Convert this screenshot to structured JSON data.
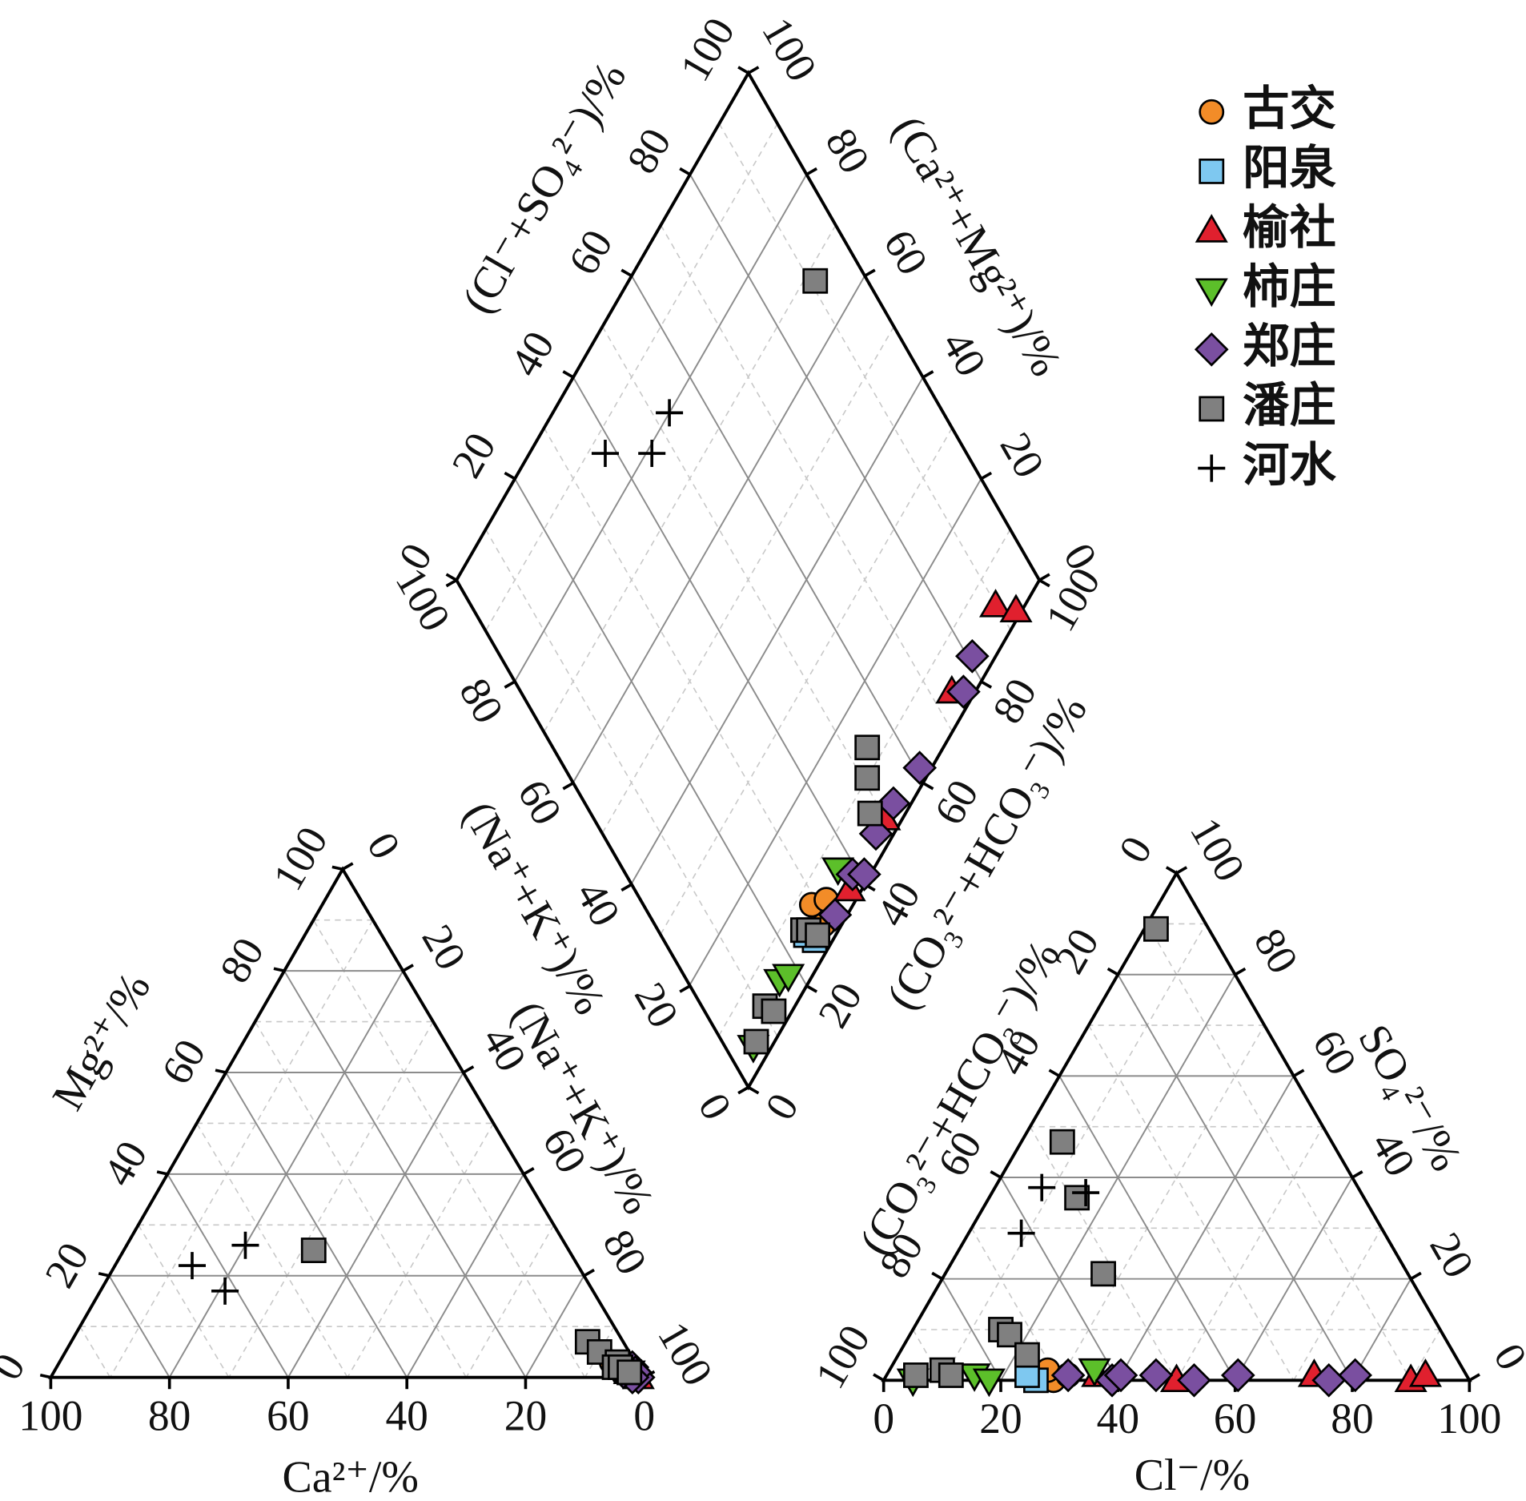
{
  "chart_data": {
    "type": "piper",
    "grid": true,
    "minor_grid": [
      10,
      30,
      50,
      70,
      90
    ],
    "legend": "top-right",
    "axes": {
      "ca": {
        "label": "Ca²⁺/%",
        "ticks": [
          0,
          20,
          40,
          60,
          80,
          100
        ]
      },
      "mg": {
        "label": "Mg²⁺/%",
        "ticks": [
          0,
          20,
          40,
          60,
          80,
          100
        ]
      },
      "nak": {
        "label": "(Na⁺+K⁺)/%",
        "ticks": [
          0,
          20,
          40,
          60,
          80,
          100
        ]
      },
      "cl": {
        "label": "Cl⁻/%",
        "ticks": [
          0,
          20,
          40,
          60,
          80,
          100
        ]
      },
      "so4": {
        "label": "SO₄²⁻/%",
        "ticks": [
          0,
          20,
          40,
          60,
          80,
          100
        ]
      },
      "hco3": {
        "label": "(CO₃²⁻+HCO₃⁻)/%",
        "ticks": [
          0,
          20,
          40,
          60,
          80,
          100
        ]
      },
      "d_clso4": {
        "label": "(Cl⁻+SO₄²⁻)/%",
        "ticks": [
          0,
          20,
          40,
          60,
          80,
          100
        ]
      },
      "d_camg": {
        "label": "(Ca²⁺+Mg²⁺)/%",
        "ticks": [
          0,
          20,
          40,
          60,
          80,
          100
        ]
      },
      "d_nak": {
        "label": "(Na⁺+K⁺)/%",
        "ticks": [
          0,
          20,
          40,
          60,
          80,
          100
        ]
      },
      "d_hco3": {
        "label": "(CO₃²⁻+HCO₃⁻)/%",
        "ticks": [
          0,
          20,
          40,
          60,
          80,
          100
        ]
      }
    },
    "series": [
      {
        "name": "古交",
        "color": "#f28c28",
        "marker": "circle",
        "ca": [
          3,
          2,
          4,
          3
        ],
        "mg": [
          2,
          1,
          3,
          2
        ],
        "cl": [
          25,
          29,
          27,
          31
        ],
        "so4": [
          1,
          0,
          2,
          1
        ]
      },
      {
        "name": "阳泉",
        "color": "#7ec8f0",
        "marker": "square",
        "ca": [
          2,
          3
        ],
        "mg": [
          1,
          2
        ],
        "cl": [
          26,
          24
        ],
        "so4": [
          0,
          1
        ]
      },
      {
        "name": "榆社",
        "color": "#e0202e",
        "marker": "triangle",
        "ca": [
          1,
          2,
          2,
          3,
          1
        ],
        "mg": [
          1,
          1,
          2,
          2,
          0
        ],
        "cl": [
          36,
          50,
          73,
          90,
          92
        ],
        "so4": [
          1,
          0,
          1,
          0,
          1
        ]
      },
      {
        "name": "柿庄",
        "color": "#5cbf2a",
        "marker": "triangle-down",
        "ca": [
          2,
          3,
          3,
          4
        ],
        "mg": [
          1,
          2,
          1,
          2
        ],
        "cl": [
          5,
          15,
          18,
          35
        ],
        "so4": [
          0,
          1,
          0,
          2
        ]
      },
      {
        "name": "郑庄",
        "color": "#7a4fa0",
        "marker": "diamond",
        "ca": [
          1,
          2,
          1,
          2,
          1,
          1,
          2,
          3
        ],
        "mg": [
          1,
          1,
          0,
          1,
          2,
          1,
          0,
          1
        ],
        "cl": [
          31,
          39,
          40,
          46,
          53,
          60,
          76,
          80
        ],
        "so4": [
          1,
          0,
          1,
          1,
          0,
          1,
          0,
          1
        ]
      },
      {
        "name": "潘庄",
        "color": "#808080",
        "marker": "square",
        "ca": [
          43,
          6,
          5,
          3,
          4,
          3,
          2,
          2,
          3,
          2
        ],
        "mg": [
          25,
          7,
          5,
          3,
          2,
          2,
          1,
          1,
          2,
          1
        ],
        "cl": [
          2,
          7,
          15,
          27,
          15,
          17,
          22,
          5,
          9,
          11
        ],
        "so4": [
          89,
          47,
          36,
          21,
          10,
          9,
          5,
          1,
          2,
          1
        ]
      },
      {
        "name": "河水",
        "color": "#000000",
        "marker": "plus",
        "ca": [
          54,
          65,
          62
        ],
        "mg": [
          26,
          22,
          17
        ],
        "cl": [
          16,
          9,
          8
        ],
        "so4": [
          37,
          29,
          38
        ]
      }
    ]
  }
}
